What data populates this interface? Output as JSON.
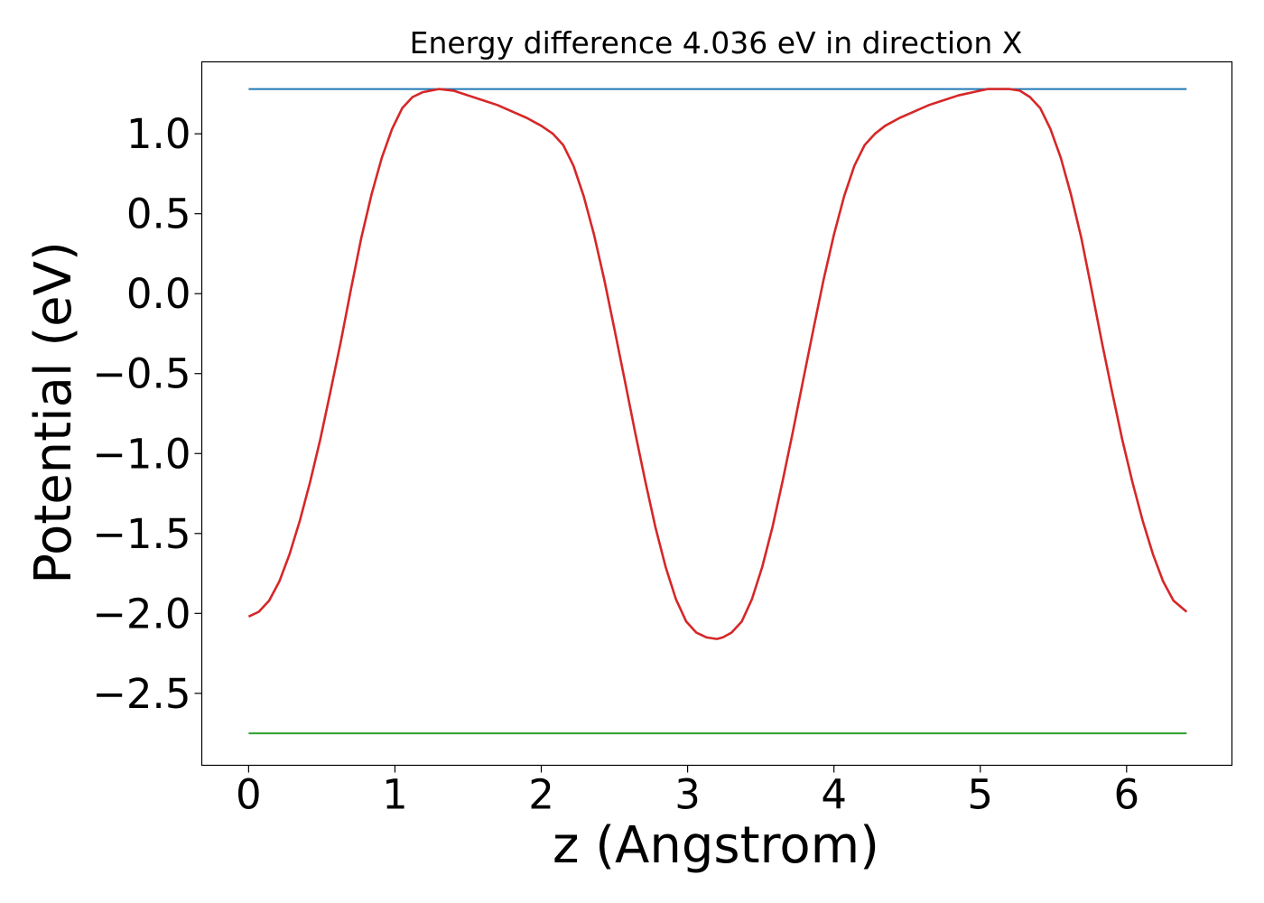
{
  "chart_data": {
    "type": "line",
    "title": "Energy difference 4.036 eV in direction X",
    "xlabel": "z (Angstrom)",
    "ylabel": "Potential (eV)",
    "xlim": [
      -0.32,
      6.72
    ],
    "ylim": [
      -2.95,
      1.45
    ],
    "xticks": [
      0,
      1,
      2,
      3,
      4,
      5,
      6
    ],
    "xtick_labels": [
      "0",
      "1",
      "2",
      "3",
      "4",
      "5",
      "6"
    ],
    "yticks": [
      -2.5,
      -2.0,
      -1.5,
      -1.0,
      -0.5,
      0.0,
      0.5,
      1.0
    ],
    "ytick_labels": [
      "−2.5",
      "−2.0",
      "−1.5",
      "−1.0",
      "−0.5",
      "0.0",
      "0.5",
      "1.0"
    ],
    "grid": false,
    "series": [
      {
        "color": "#d62728",
        "x": [
          0.0,
          0.07,
          0.14,
          0.21,
          0.28,
          0.35,
          0.42,
          0.49,
          0.56,
          0.63,
          0.7,
          0.77,
          0.84,
          0.91,
          0.98,
          1.05,
          1.12,
          1.19,
          1.3,
          1.4,
          1.5,
          1.6,
          1.7,
          1.8,
          1.9,
          2.0,
          2.08,
          2.15,
          2.22,
          2.29,
          2.36,
          2.43,
          2.5,
          2.57,
          2.64,
          2.71,
          2.78,
          2.85,
          2.92,
          2.99,
          3.06,
          3.13,
          3.2,
          3.24,
          3.3,
          3.37,
          3.44,
          3.51,
          3.58,
          3.65,
          3.72,
          3.79,
          3.86,
          3.93,
          4.0,
          4.07,
          4.14,
          4.21,
          4.28,
          4.35,
          4.45,
          4.55,
          4.65,
          4.75,
          4.85,
          4.95,
          5.05,
          5.15,
          5.2,
          5.27,
          5.34,
          5.41,
          5.48,
          5.55,
          5.62,
          5.69,
          5.76,
          5.83,
          5.9,
          5.97,
          6.04,
          6.11,
          6.18,
          6.25,
          6.32,
          6.41
        ],
        "y": [
          -2.02,
          -1.99,
          -1.92,
          -1.8,
          -1.63,
          -1.42,
          -1.18,
          -0.91,
          -0.61,
          -0.3,
          0.03,
          0.35,
          0.62,
          0.85,
          1.03,
          1.16,
          1.23,
          1.26,
          1.28,
          1.27,
          1.24,
          1.21,
          1.18,
          1.14,
          1.1,
          1.05,
          1.0,
          0.93,
          0.8,
          0.61,
          0.37,
          0.09,
          -0.22,
          -0.54,
          -0.86,
          -1.17,
          -1.46,
          -1.71,
          -1.91,
          -2.05,
          -2.12,
          -2.15,
          -2.16,
          -2.15,
          -2.12,
          -2.05,
          -1.91,
          -1.71,
          -1.46,
          -1.17,
          -0.86,
          -0.54,
          -0.22,
          0.09,
          0.37,
          0.61,
          0.8,
          0.93,
          1.0,
          1.05,
          1.1,
          1.14,
          1.18,
          1.21,
          1.24,
          1.26,
          1.28,
          1.28,
          1.28,
          1.27,
          1.23,
          1.16,
          1.03,
          0.85,
          0.62,
          0.35,
          0.03,
          -0.3,
          -0.61,
          -0.91,
          -1.18,
          -1.42,
          -1.63,
          -1.8,
          -1.92,
          -1.99
        ]
      },
      {
        "color": "#1f77b4",
        "x": [
          0.0,
          6.41
        ],
        "y": [
          1.28,
          1.28
        ]
      },
      {
        "color": "#2ca02c",
        "x": [
          0.0,
          6.41
        ],
        "y": [
          -2.75,
          -2.75
        ]
      }
    ]
  }
}
